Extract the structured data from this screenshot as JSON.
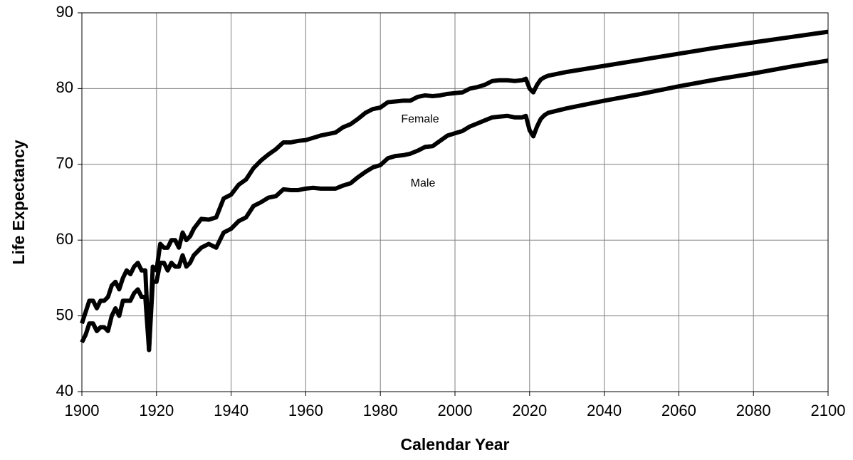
{
  "chart_data": {
    "type": "line",
    "xlabel": "Calendar Year",
    "ylabel": "Life Expectancy",
    "x": [
      1900,
      1901,
      1902,
      1903,
      1904,
      1905,
      1906,
      1907,
      1908,
      1909,
      1910,
      1911,
      1912,
      1913,
      1914,
      1915,
      1916,
      1917,
      1918,
      1919,
      1920,
      1921,
      1922,
      1923,
      1924,
      1925,
      1926,
      1927,
      1928,
      1929,
      1930,
      1932,
      1934,
      1936,
      1938,
      1940,
      1942,
      1944,
      1946,
      1948,
      1950,
      1952,
      1954,
      1956,
      1958,
      1960,
      1962,
      1964,
      1966,
      1968,
      1970,
      1972,
      1974,
      1976,
      1978,
      1980,
      1982,
      1984,
      1986,
      1988,
      1990,
      1992,
      1994,
      1996,
      1998,
      2000,
      2002,
      2004,
      2006,
      2008,
      2010,
      2012,
      2014,
      2016,
      2018,
      2019,
      2020,
      2021,
      2022,
      2023,
      2024,
      2025,
      2030,
      2040,
      2050,
      2060,
      2070,
      2080,
      2090,
      2100
    ],
    "series": [
      {
        "name": "Female",
        "color": "#000000",
        "values": [
          49,
          50.5,
          52,
          52,
          51,
          52,
          52,
          52.5,
          54,
          54.5,
          53.5,
          55,
          56,
          55.5,
          56.5,
          57,
          56,
          56,
          45.5,
          56.5,
          56,
          59.5,
          59,
          59,
          60,
          60,
          59,
          61,
          60,
          60.5,
          61.5,
          62.8,
          62.7,
          63,
          65.5,
          66,
          67.3,
          68,
          69.5,
          70.5,
          71.3,
          72,
          72.9,
          72.9,
          73.1,
          73.2,
          73.5,
          73.8,
          74,
          74.2,
          74.9,
          75.3,
          76,
          76.8,
          77.3,
          77.5,
          78.2,
          78.3,
          78.4,
          78.4,
          78.9,
          79.1,
          79,
          79.1,
          79.3,
          79.4,
          79.5,
          80,
          80.2,
          80.5,
          81,
          81.1,
          81.1,
          81,
          81.1,
          81.3,
          80,
          79.5,
          80.5,
          81.2,
          81.5,
          81.7,
          82.2,
          83,
          83.8,
          84.6,
          85.4,
          86.1,
          86.8,
          87.5
        ]
      },
      {
        "name": "Male",
        "color": "#000000",
        "values": [
          46.5,
          47.5,
          49,
          49,
          48,
          48.5,
          48.5,
          48,
          50,
          51,
          50,
          52,
          52,
          52,
          53,
          53.5,
          52.5,
          52.5,
          45.5,
          54.5,
          54.5,
          57,
          57,
          56,
          57,
          56.5,
          56.5,
          58,
          56.5,
          57,
          58,
          59,
          59.5,
          59,
          61,
          61.5,
          62.5,
          63,
          64.5,
          65,
          65.6,
          65.8,
          66.7,
          66.6,
          66.6,
          66.8,
          66.9,
          66.8,
          66.8,
          66.8,
          67.2,
          67.5,
          68.3,
          69,
          69.6,
          69.9,
          70.8,
          71.1,
          71.2,
          71.4,
          71.8,
          72.3,
          72.4,
          73.1,
          73.8,
          74.1,
          74.4,
          75,
          75.4,
          75.8,
          76.2,
          76.3,
          76.4,
          76.2,
          76.2,
          76.4,
          74.5,
          73.7,
          75,
          76,
          76.5,
          76.8,
          77.4,
          78.4,
          79.3,
          80.3,
          81.2,
          82,
          82.9,
          83.7
        ]
      }
    ],
    "xlim": [
      1900,
      2100
    ],
    "xticks": [
      1900,
      1920,
      1940,
      1960,
      1980,
      2000,
      2020,
      2040,
      2060,
      2080,
      2100
    ],
    "ylim": [
      40,
      90
    ],
    "yticks": [
      40,
      50,
      60,
      70,
      80,
      90
    ],
    "grid": true
  }
}
